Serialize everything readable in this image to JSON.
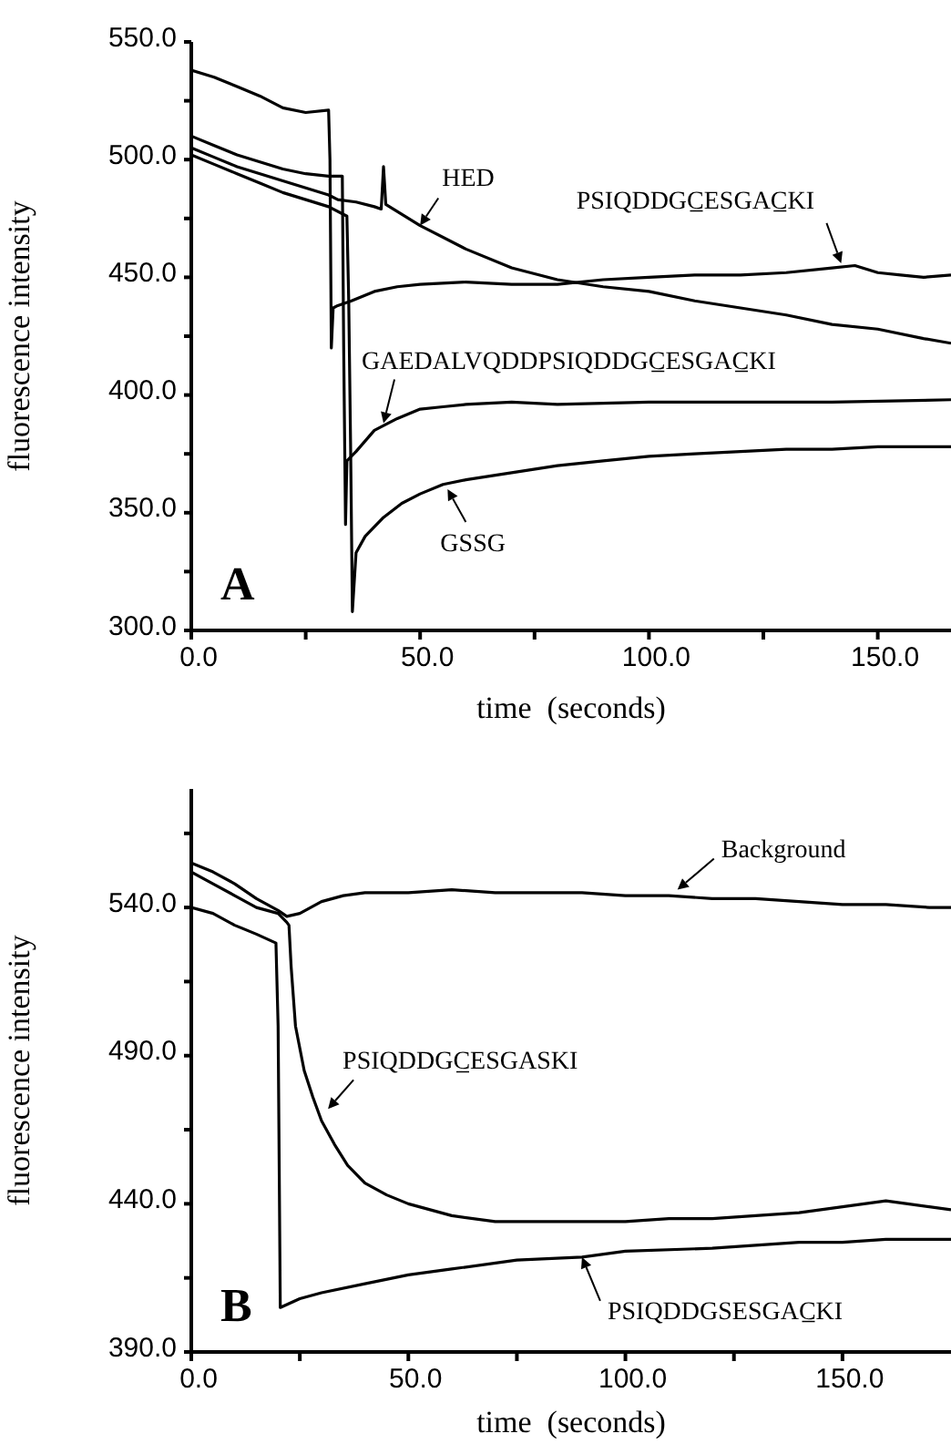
{
  "chart_data": [
    {
      "type": "line",
      "xlabel": "time  (seconds)",
      "ylabel": "fluorescence intensity",
      "xlim": [
        0,
        166
      ],
      "ylim": [
        300,
        550
      ],
      "xticks": [
        {
          "value": 0,
          "label": "0.0"
        },
        {
          "value": 25,
          "label": null
        },
        {
          "value": 50,
          "label": "50.0"
        },
        {
          "value": 75,
          "label": null
        },
        {
          "value": 100,
          "label": "100.0"
        },
        {
          "value": 125,
          "label": null
        },
        {
          "value": 150,
          "label": "150.0"
        }
      ],
      "yticks": [
        {
          "value": 300,
          "label": "300.0"
        },
        {
          "value": 325,
          "label": null
        },
        {
          "value": 350,
          "label": "350.0"
        },
        {
          "value": 375,
          "label": null
        },
        {
          "value": 400,
          "label": "400.0"
        },
        {
          "value": 425,
          "label": null
        },
        {
          "value": 450,
          "label": "450.0"
        },
        {
          "value": 475,
          "label": null
        },
        {
          "value": 500,
          "label": "500.0"
        },
        {
          "value": 525,
          "label": null
        },
        {
          "value": 550,
          "label": "550.0"
        }
      ],
      "series": [
        {
          "color": "#000000",
          "x": [
            0,
            5,
            10,
            15,
            20,
            25,
            30,
            32,
            36,
            40,
            41.5,
            42,
            42.5,
            45,
            50,
            60,
            70,
            80,
            90,
            100,
            110,
            120,
            130,
            140,
            150,
            160,
            166
          ],
          "values": [
            505,
            501,
            497,
            494,
            491,
            488,
            485,
            483,
            482,
            480,
            479,
            497,
            481,
            478,
            472,
            462,
            454,
            449,
            446,
            444,
            440,
            437,
            434,
            430,
            428,
            424,
            422
          ]
        },
        {
          "color": "#000000",
          "x": [
            0,
            5,
            10,
            15,
            20,
            25,
            30,
            30.3,
            30.6,
            31,
            32,
            35,
            40,
            45,
            50,
            60,
            70,
            80,
            90,
            100,
            110,
            120,
            130,
            140,
            145,
            150,
            155,
            160,
            166
          ],
          "values": [
            538,
            535,
            531,
            527,
            522,
            520,
            521,
            500,
            420,
            437,
            438,
            440,
            444,
            446,
            447,
            448,
            447,
            447,
            449,
            450,
            451,
            451,
            452,
            454,
            455,
            452,
            451,
            450,
            451
          ]
        },
        {
          "color": "#000000",
          "x": [
            0,
            5,
            10,
            15,
            20,
            25,
            30,
            33,
            33.3,
            33.7,
            34,
            36,
            40,
            45,
            50,
            55,
            60,
            70,
            80,
            100,
            120,
            140,
            166
          ],
          "values": [
            510,
            506,
            502,
            499,
            496,
            494,
            493,
            493,
            420,
            345,
            372,
            376,
            385,
            390,
            394,
            395,
            396,
            397,
            396,
            397,
            397,
            397,
            398
          ]
        },
        {
          "color": "#000000",
          "x": [
            0,
            5,
            10,
            15,
            20,
            25,
            30,
            34,
            34.4,
            34.8,
            35.2,
            36,
            38,
            42,
            46,
            50,
            55,
            60,
            70,
            80,
            90,
            100,
            110,
            120,
            130,
            140,
            150,
            160,
            166
          ],
          "values": [
            502,
            498,
            494,
            490,
            486,
            483,
            480,
            476,
            440,
            380,
            308,
            333,
            340,
            348,
            354,
            358,
            362,
            364,
            367,
            370,
            372,
            374,
            375,
            376,
            377,
            377,
            378,
            378,
            378
          ]
        }
      ],
      "annotations": [
        {
          "text": "HED",
          "x": 50,
          "y": 472
        },
        {
          "text": "PSIQDDGC̲ESGAC̲KI",
          "x": 142,
          "y": 456
        },
        {
          "text": "GAEDALVQDDPSIQDDGC̲ESGAC̲KI",
          "x": 42,
          "y": 388
        },
        {
          "text": "GSSG",
          "x": 56,
          "y": 360
        },
        "A"
      ]
    },
    {
      "type": "line",
      "xlabel": "time  (seconds)",
      "ylabel": "fluorescence intensity",
      "xlim": [
        0,
        175
      ],
      "ylim": [
        390,
        580
      ],
      "xticks": [
        {
          "value": 0,
          "label": "0.0"
        },
        {
          "value": 25,
          "label": null
        },
        {
          "value": 50,
          "label": "50.0"
        },
        {
          "value": 75,
          "label": null
        },
        {
          "value": 100,
          "label": "100.0"
        },
        {
          "value": 125,
          "label": null
        },
        {
          "value": 150,
          "label": "150.0"
        }
      ],
      "yticks": [
        {
          "value": 390,
          "label": "390.0"
        },
        {
          "value": 415,
          "label": null
        },
        {
          "value": 440,
          "label": "440.0"
        },
        {
          "value": 465,
          "label": null
        },
        {
          "value": 490,
          "label": "490.0"
        },
        {
          "value": 515,
          "label": null
        },
        {
          "value": 540,
          "label": "540.0"
        },
        {
          "value": 565,
          "label": null
        }
      ],
      "series": [
        {
          "color": "#000000",
          "x": [
            0,
            5,
            10,
            15,
            20,
            22,
            25,
            30,
            35,
            40,
            50,
            60,
            70,
            80,
            90,
            100,
            110,
            120,
            130,
            140,
            150,
            160,
            170,
            175
          ],
          "values": [
            555,
            552,
            548,
            543,
            539,
            537,
            538,
            542,
            544,
            545,
            545,
            546,
            545,
            545,
            545,
            544,
            544,
            543,
            543,
            542,
            541,
            541,
            540,
            540
          ]
        },
        {
          "color": "#000000",
          "x": [
            0,
            5,
            10,
            15,
            20,
            22,
            22.5,
            23,
            24,
            26,
            28,
            30,
            33,
            36,
            40,
            45,
            50,
            60,
            70,
            80,
            90,
            100,
            110,
            120,
            130,
            140,
            150,
            155,
            160,
            165,
            170,
            175
          ],
          "values": [
            552,
            548,
            544,
            540,
            538,
            535,
            534,
            520,
            500,
            485,
            476,
            468,
            460,
            453,
            447,
            443,
            440,
            436,
            434,
            434,
            434,
            434,
            435,
            435,
            436,
            437,
            439,
            440,
            441,
            440,
            439,
            438
          ]
        },
        {
          "color": "#000000",
          "x": [
            0,
            5,
            10,
            15,
            19.5,
            20,
            20.5,
            22,
            25,
            30,
            40,
            50,
            60,
            75,
            90,
            100,
            120,
            140,
            150,
            160,
            175
          ],
          "values": [
            540,
            538,
            534,
            531,
            528,
            500,
            405,
            406,
            408,
            410,
            413,
            416,
            418,
            421,
            422,
            424,
            425,
            427,
            427,
            428,
            428
          ]
        }
      ],
      "annotations": [
        {
          "text": "Background",
          "x": 112,
          "y": 546
        },
        {
          "text": "PSIQDDGC̲ESGASKI",
          "x": 31.5,
          "y": 472
        },
        {
          "text": "PSIQDDGSESGAC̲KI",
          "x": 90,
          "y": 422
        },
        "B"
      ]
    }
  ]
}
